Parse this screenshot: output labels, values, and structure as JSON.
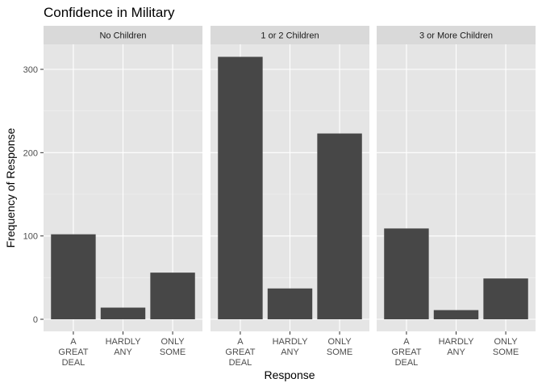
{
  "chart_data": {
    "type": "bar",
    "title": "Confidence in Military",
    "xlabel": "Response",
    "ylabel": "Frequency of Response",
    "ylim": [
      0,
      330
    ],
    "yticks": [
      0,
      100,
      200,
      300
    ],
    "categories": [
      [
        "A",
        "GREAT",
        "DEAL"
      ],
      [
        "HARDLY",
        "ANY"
      ],
      [
        "ONLY",
        "SOME"
      ]
    ],
    "panels": [
      {
        "name": "No Children",
        "values": [
          102,
          14,
          56
        ]
      },
      {
        "name": "1 or 2 Children",
        "values": [
          315,
          37,
          223
        ]
      },
      {
        "name": "3 or More Children",
        "values": [
          109,
          11,
          49
        ]
      }
    ],
    "grid": true,
    "legend": "none"
  },
  "colors": {
    "panel_background": "#e5e5e5",
    "grid_major": "#ffffff",
    "strip_background": "#d9d9d9",
    "bar_fill": "#474747",
    "text": "#000000",
    "tick_text": "#4d4d4d"
  }
}
